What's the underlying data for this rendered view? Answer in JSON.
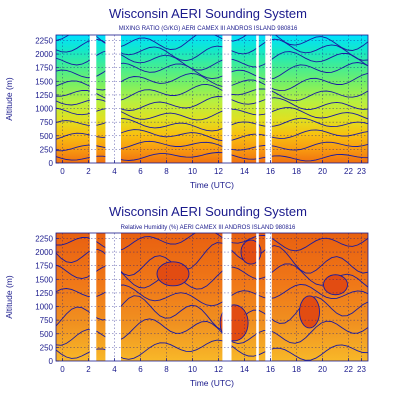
{
  "chart_data": [
    {
      "type": "heatmap",
      "title": "Wisconsin AERI Sounding System",
      "subtitle": "MIXING RATIO (G/KG) AERI CAMEX III ANDROS ISLAND 980816",
      "xlabel": "Time (UTC)",
      "ylabel": "Altitude (m)",
      "x_ticks": [
        "0",
        "2",
        "4",
        "6",
        "8",
        "10",
        "12",
        "14",
        "16",
        "18",
        "20",
        "22",
        "23"
      ],
      "y_ticks": [
        "0",
        "250",
        "500",
        "750",
        "1000",
        "1250",
        "1500",
        "1750",
        "2000",
        "2250"
      ],
      "xlim": [
        -0.5,
        23.5
      ],
      "ylim": [
        0,
        2350
      ],
      "data_gaps_utc": [
        [
          2.1,
          2.6
        ],
        [
          3.3,
          4.5
        ],
        [
          12.3,
          13.0
        ],
        [
          14.9,
          15.1
        ],
        [
          15.6,
          16.1
        ]
      ],
      "colors_low_to_high": [
        "#00e0ff",
        "#14e8c8",
        "#40ec96",
        "#78f064",
        "#b8f040",
        "#e0e020",
        "#f8c010",
        "#f89810",
        "#f07010"
      ],
      "grid": true
    },
    {
      "type": "heatmap",
      "title": "Wisconsin AERI Sounding System",
      "subtitle": "Relative Humidity (%) AERI CAMEX III ANDROS ISLAND 980816",
      "xlabel": "Time (UTC)",
      "ylabel": "Altitude (m)",
      "x_ticks": [
        "0",
        "2",
        "4",
        "6",
        "8",
        "10",
        "12",
        "14",
        "16",
        "18",
        "20",
        "22",
        "23"
      ],
      "y_ticks": [
        "0",
        "250",
        "500",
        "750",
        "1000",
        "1250",
        "1500",
        "1750",
        "2000",
        "2250"
      ],
      "xlim": [
        -0.5,
        23.5
      ],
      "ylim": [
        0,
        2350
      ],
      "data_gaps_utc": [
        [
          2.1,
          2.6
        ],
        [
          3.3,
          4.5
        ],
        [
          12.3,
          13.0
        ],
        [
          14.9,
          15.1
        ],
        [
          15.6,
          16.1
        ]
      ],
      "colors_low_to_high": [
        "#f8c028",
        "#f8a020",
        "#f08018",
        "#e86010",
        "#e04010"
      ],
      "grid": true
    }
  ]
}
